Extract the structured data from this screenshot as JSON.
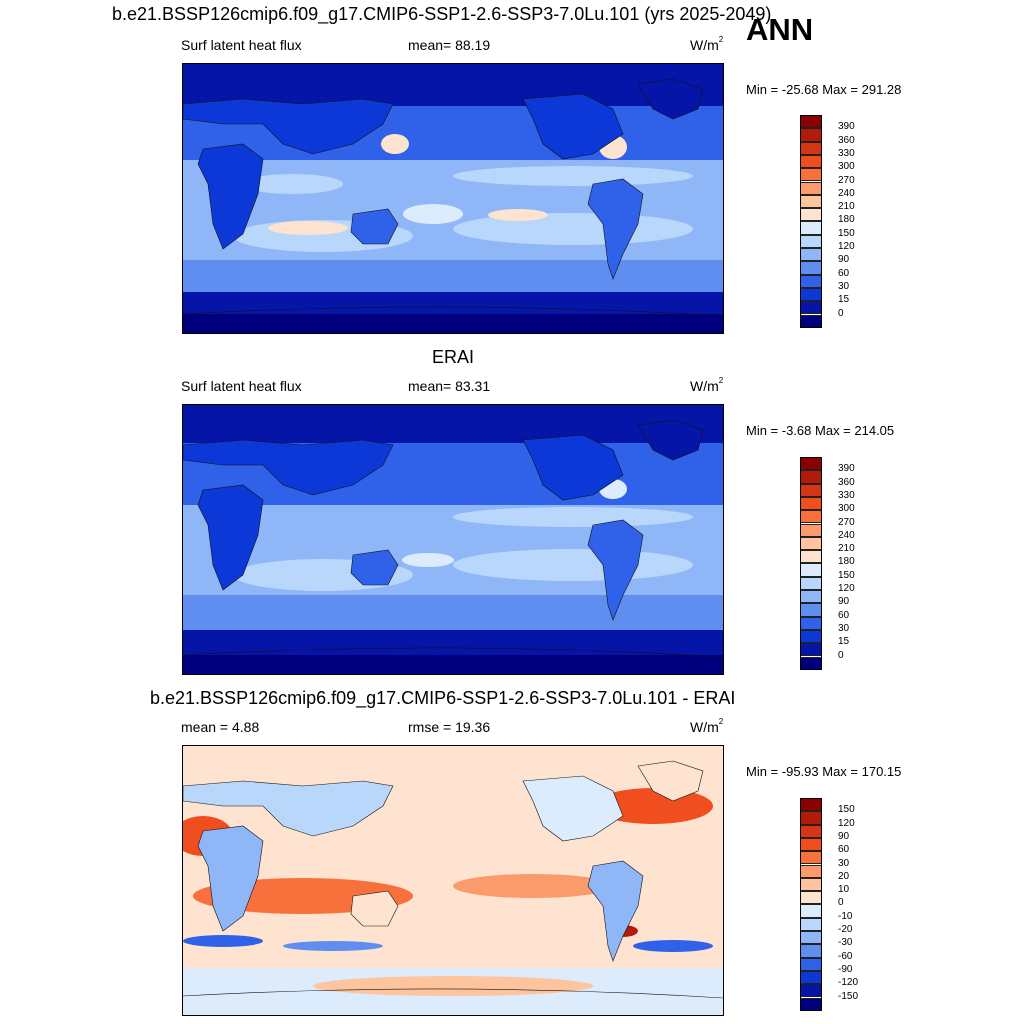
{
  "header": {
    "main_title": "b.e21.BSSP126cmip6.f09_g17.CMIP6-SSP1-2.6-SSP3-7.0Lu.101 (yrs 2025-2049)",
    "season": "ANN"
  },
  "panels": [
    {
      "id": "model",
      "left_label": "Surf latent heat flux",
      "center_label": "mean=  88.19",
      "unit": "W/m",
      "unit_exp": "2",
      "minmax": "Min = -25.68 Max = 291.28"
    },
    {
      "id": "obs",
      "title": "ERAI",
      "left_label": "Surf latent heat flux",
      "center_label": "mean=  83.31",
      "unit": "W/m",
      "unit_exp": "2",
      "minmax": "Min =  -3.68 Max = 214.05"
    },
    {
      "id": "diff",
      "title": "b.e21.BSSP126cmip6.f09_g17.CMIP6-SSP1-2.6-SSP3-7.0Lu.101 - ERAI",
      "left_label": "mean =   4.88",
      "center_label": "rmse =  19.36",
      "unit": "W/m",
      "unit_exp": "2",
      "minmax": "Min = -95.93 Max = 170.15"
    }
  ],
  "colorbars": {
    "abs": {
      "labels": [
        "390",
        "360",
        "330",
        "300",
        "270",
        "240",
        "210",
        "180",
        "150",
        "120",
        "90",
        "60",
        "30",
        "15",
        "0"
      ],
      "colors": [
        "#8b0000",
        "#b21a0a",
        "#d73614",
        "#f04e1e",
        "#f8703c",
        "#fb9a6a",
        "#fdc49d",
        "#fee3d0",
        "#dcecfd",
        "#b9d6fb",
        "#8fb6f7",
        "#5f8ef0",
        "#2f62e8",
        "#0c38d8",
        "#0515a8",
        "#00007f"
      ]
    },
    "diff": {
      "labels": [
        "150",
        "120",
        "90",
        "60",
        "30",
        "20",
        "10",
        "0",
        "-10",
        "-20",
        "-30",
        "-60",
        "-90",
        "-120",
        "-150"
      ],
      "colors": [
        "#8b0000",
        "#b21a0a",
        "#d73614",
        "#f04e1e",
        "#f8703c",
        "#fb9a6a",
        "#fdc49d",
        "#fee3d0",
        "#dcecfd",
        "#b9d6fb",
        "#8fb6f7",
        "#5f8ef0",
        "#2f62e8",
        "#0c38d8",
        "#0515a8",
        "#00007f"
      ]
    }
  }
}
